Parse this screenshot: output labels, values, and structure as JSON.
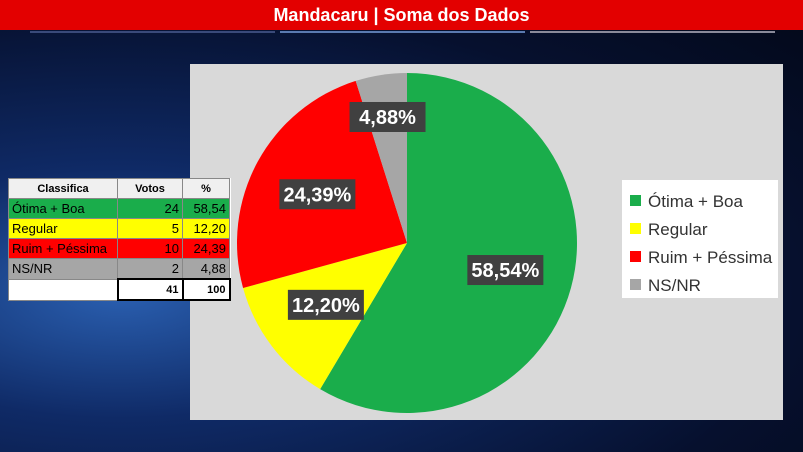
{
  "header": {
    "title": "Mandacaru | Soma dos Dados"
  },
  "chart_data": {
    "type": "pie",
    "categories": [
      "Ótima + Boa",
      "Regular",
      "Ruim + Péssima",
      "NS/NR"
    ],
    "values": [
      58.54,
      12.2,
      24.39,
      4.88
    ],
    "value_labels": [
      "58,54%",
      "12,20%",
      "24,39%",
      "4,88%"
    ],
    "colors": [
      "#1aad4b",
      "#ffff00",
      "#ff0000",
      "#a6a6a6"
    ],
    "legend": "right"
  },
  "table": {
    "columns": [
      "Classifica",
      "Votos",
      "%"
    ],
    "rows": [
      [
        "Ótima + Boa",
        "24",
        "58,54"
      ],
      [
        "Regular",
        "5",
        "12,20"
      ],
      [
        "Ruim + Péssima",
        "10",
        "24,39"
      ],
      [
        "NS/NR",
        "2",
        "4,88"
      ]
    ],
    "total": [
      "",
      "41",
      "100"
    ]
  }
}
